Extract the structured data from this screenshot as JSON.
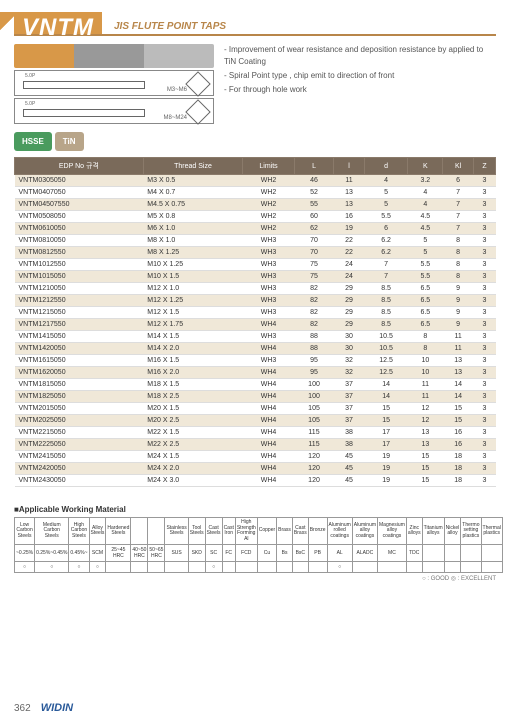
{
  "header": {
    "title": "VNTM",
    "subtitle": "JIS FLUTE POINT TAPS"
  },
  "drawings": {
    "dim": "5.0P",
    "label1": "M3~M6",
    "label2": "M8~M24"
  },
  "bullets": [
    "- Improvement of wear resistance and deposition resistance by applied to TiN Coating",
    "- Spiral Point type , chip emit to direction of front",
    "- For through hole work"
  ],
  "badges": [
    "HSSE",
    "TiN"
  ],
  "table": {
    "columns": [
      "EDP No 규격",
      "Thread Size",
      "Limits",
      "L",
      "l",
      "d",
      "K",
      "Kl",
      "Z"
    ],
    "rows": [
      [
        "VNTM0305050",
        "M3 X 0.5",
        "WH2",
        "46",
        "11",
        "4",
        "3.2",
        "6",
        "3"
      ],
      [
        "VNTM0407050",
        "M4 X 0.7",
        "WH2",
        "52",
        "13",
        "5",
        "4",
        "7",
        "3"
      ],
      [
        "VNTM04507550",
        "M4.5 X 0.75",
        "WH2",
        "55",
        "13",
        "5",
        "4",
        "7",
        "3"
      ],
      [
        "VNTM0508050",
        "M5 X 0.8",
        "WH2",
        "60",
        "16",
        "5.5",
        "4.5",
        "7",
        "3"
      ],
      [
        "VNTM0610050",
        "M6 X 1.0",
        "WH2",
        "62",
        "19",
        "6",
        "4.5",
        "7",
        "3"
      ],
      [
        "VNTM0810050",
        "M8 X 1.0",
        "WH3",
        "70",
        "22",
        "6.2",
        "5",
        "8",
        "3"
      ],
      [
        "VNTM0812550",
        "M8 X 1.25",
        "WH3",
        "70",
        "22",
        "6.2",
        "5",
        "8",
        "3"
      ],
      [
        "VNTM1012550",
        "M10 X 1.25",
        "WH3",
        "75",
        "24",
        "7",
        "5.5",
        "8",
        "3"
      ],
      [
        "VNTM1015050",
        "M10 X 1.5",
        "WH3",
        "75",
        "24",
        "7",
        "5.5",
        "8",
        "3"
      ],
      [
        "VNTM1210050",
        "M12 X 1.0",
        "WH3",
        "82",
        "29",
        "8.5",
        "6.5",
        "9",
        "3"
      ],
      [
        "VNTM1212550",
        "M12 X 1.25",
        "WH3",
        "82",
        "29",
        "8.5",
        "6.5",
        "9",
        "3"
      ],
      [
        "VNTM1215050",
        "M12 X 1.5",
        "WH3",
        "82",
        "29",
        "8.5",
        "6.5",
        "9",
        "3"
      ],
      [
        "VNTM1217550",
        "M12 X 1.75",
        "WH4",
        "82",
        "29",
        "8.5",
        "6.5",
        "9",
        "3"
      ],
      [
        "VNTM1415050",
        "M14 X 1.5",
        "WH3",
        "88",
        "30",
        "10.5",
        "8",
        "11",
        "3"
      ],
      [
        "VNTM1420050",
        "M14 X 2.0",
        "WH4",
        "88",
        "30",
        "10.5",
        "8",
        "11",
        "3"
      ],
      [
        "VNTM1615050",
        "M16 X 1.5",
        "WH3",
        "95",
        "32",
        "12.5",
        "10",
        "13",
        "3"
      ],
      [
        "VNTM1620050",
        "M16 X 2.0",
        "WH4",
        "95",
        "32",
        "12.5",
        "10",
        "13",
        "3"
      ],
      [
        "VNTM1815050",
        "M18 X 1.5",
        "WH4",
        "100",
        "37",
        "14",
        "11",
        "14",
        "3"
      ],
      [
        "VNTM1825050",
        "M18 X 2.5",
        "WH4",
        "100",
        "37",
        "14",
        "11",
        "14",
        "3"
      ],
      [
        "VNTM2015050",
        "M20 X 1.5",
        "WH4",
        "105",
        "37",
        "15",
        "12",
        "15",
        "3"
      ],
      [
        "VNTM2025050",
        "M20 X 2.5",
        "WH4",
        "105",
        "37",
        "15",
        "12",
        "15",
        "3"
      ],
      [
        "VNTM2215050",
        "M22 X 1.5",
        "WH4",
        "115",
        "38",
        "17",
        "13",
        "16",
        "3"
      ],
      [
        "VNTM2225050",
        "M22 X 2.5",
        "WH4",
        "115",
        "38",
        "17",
        "13",
        "16",
        "3"
      ],
      [
        "VNTM2415050",
        "M24 X 1.5",
        "WH4",
        "120",
        "45",
        "19",
        "15",
        "18",
        "3"
      ],
      [
        "VNTM2420050",
        "M24 X 2.0",
        "WH4",
        "120",
        "45",
        "19",
        "15",
        "18",
        "3"
      ],
      [
        "VNTM2430050",
        "M24 X 3.0",
        "WH4",
        "120",
        "45",
        "19",
        "15",
        "18",
        "3"
      ]
    ]
  },
  "material": {
    "title": "■Applicable Working Material",
    "headers": [
      "Low Carbon Steels",
      "Medium Carbon Steels",
      "High Carbon Steels",
      "Alloy Steels",
      "Hardened Steels",
      "",
      "",
      "Stainless Steels",
      "Tool Steels",
      "Cast Steels",
      "Cast Iron",
      "High Strength Forming Al",
      "Copper",
      "Brass",
      "Cast Brass",
      "Bronze",
      "Aluminum rolled coatings",
      "Aluminum alloy coatings",
      "Magnesium alloy coatings",
      "Zinc alloys",
      "Titanium alloys",
      "Nickel alloy",
      "Thermo setting plastics",
      "Thermal plastics"
    ],
    "sub": [
      "~0.25%",
      "0.25%~0.45%",
      "0.45%~",
      "SCM",
      "25~45 HRC",
      "40~50 HRC",
      "50~65 HRC",
      "SUS",
      "SKD",
      "SC",
      "FC",
      "FCD",
      "Cu",
      "Bs",
      "BsC",
      "PB",
      "AL",
      "ALADC",
      "MC",
      "TDC",
      "",
      "",
      "",
      ""
    ],
    "marks": [
      "○",
      "○",
      "○",
      "○",
      "",
      "",
      "",
      "",
      "",
      "○",
      "",
      "",
      "",
      "",
      "",
      "",
      "○",
      "",
      "",
      "",
      "",
      "",
      "",
      ""
    ],
    "legend": "○ : GOOD    ◎ : EXCELLENT"
  },
  "footer": {
    "page": "362",
    "logo": "WIDIN"
  }
}
